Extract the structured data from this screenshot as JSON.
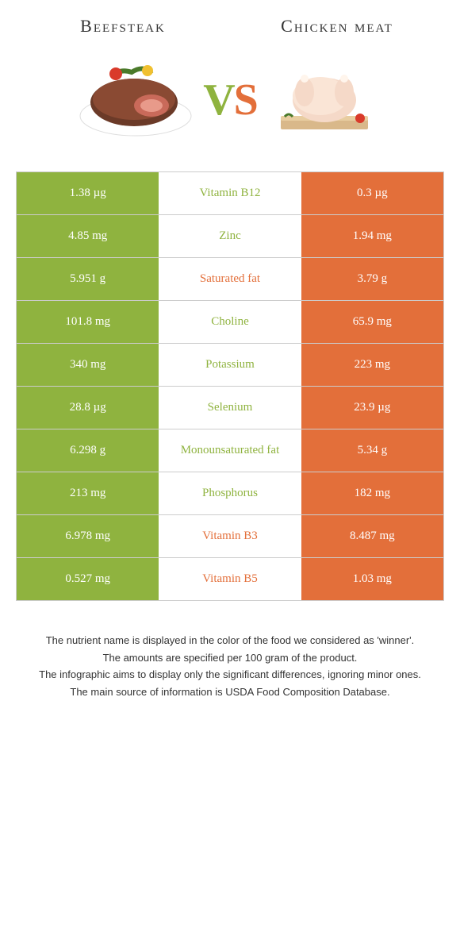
{
  "colors": {
    "left": "#8fb33f",
    "right": "#e36f3a",
    "mid_bg": "#ffffff",
    "border": "#cccccc"
  },
  "header": {
    "left_title": "Beefsteak",
    "right_title": "Chicken meat"
  },
  "vs": {
    "v": "V",
    "s": "S"
  },
  "rows": [
    {
      "left": "1.38 µg",
      "mid": "Vitamin B12",
      "right": "0.3 µg",
      "winner": "left"
    },
    {
      "left": "4.85 mg",
      "mid": "Zinc",
      "right": "1.94 mg",
      "winner": "left"
    },
    {
      "left": "5.951 g",
      "mid": "Saturated fat",
      "right": "3.79 g",
      "winner": "right"
    },
    {
      "left": "101.8 mg",
      "mid": "Choline",
      "right": "65.9 mg",
      "winner": "left"
    },
    {
      "left": "340 mg",
      "mid": "Potassium",
      "right": "223 mg",
      "winner": "left"
    },
    {
      "left": "28.8 µg",
      "mid": "Selenium",
      "right": "23.9 µg",
      "winner": "left"
    },
    {
      "left": "6.298 g",
      "mid": "Monounsaturated fat",
      "right": "5.34 g",
      "winner": "left"
    },
    {
      "left": "213 mg",
      "mid": "Phosphorus",
      "right": "182 mg",
      "winner": "left"
    },
    {
      "left": "6.978 mg",
      "mid": "Vitamin B3",
      "right": "8.487 mg",
      "winner": "right"
    },
    {
      "left": "0.527 mg",
      "mid": "Vitamin B5",
      "right": "1.03 mg",
      "winner": "right"
    }
  ],
  "footnotes": [
    "The nutrient name is displayed in the color of the food we considered as 'winner'.",
    "The amounts are specified per 100 gram of the product.",
    "The infographic aims to display only the significant differences, ignoring minor ones.",
    "The main source of information is USDA Food Composition Database."
  ]
}
